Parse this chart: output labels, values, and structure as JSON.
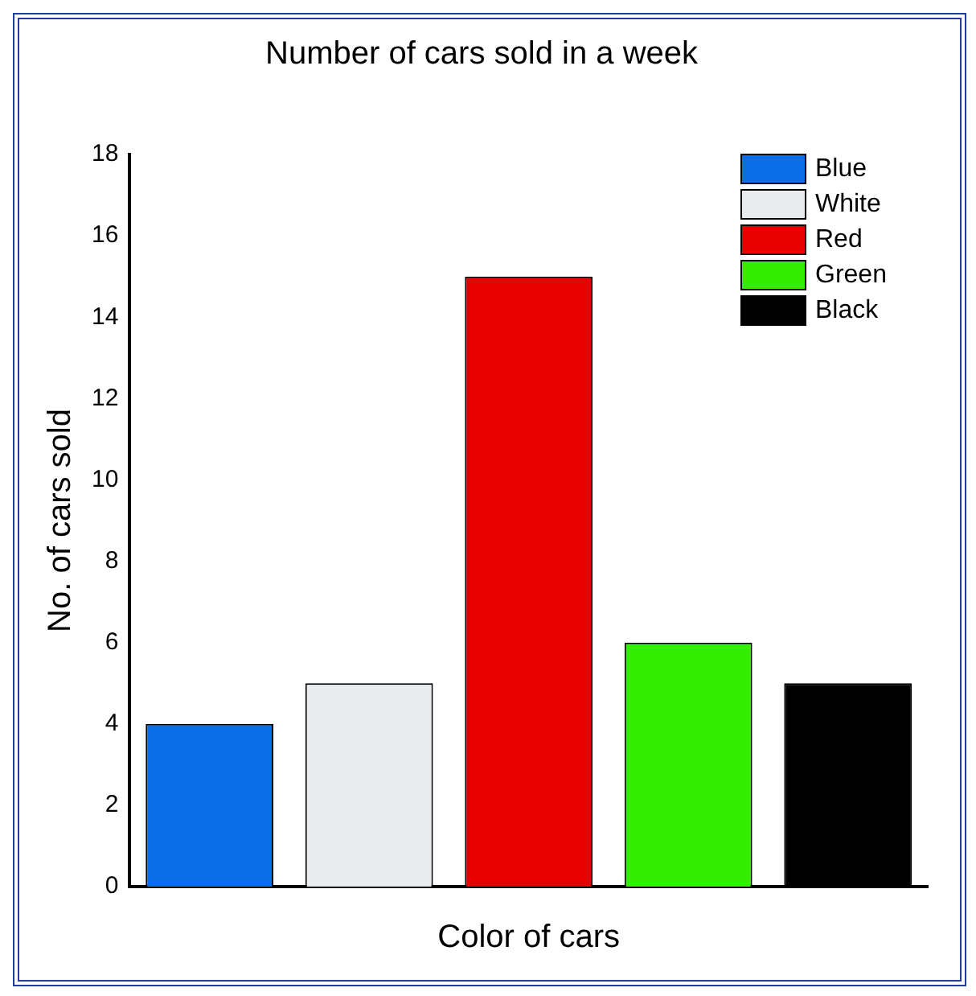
{
  "chart_data": {
    "type": "bar",
    "title": "Number of cars sold in a week",
    "xlabel": "Color of cars",
    "ylabel": "No. of cars sold",
    "categories": [
      null,
      null,
      null,
      null,
      null
    ],
    "series": [
      {
        "name": "Blue",
        "color": "#0a6ee6",
        "values": [
          4,
          null,
          null,
          null,
          null
        ]
      },
      {
        "name": "White",
        "color": "#e8ecef",
        "values": [
          null,
          5,
          null,
          null,
          null
        ]
      },
      {
        "name": "Red",
        "color": "#e60000",
        "values": [
          null,
          null,
          15,
          null,
          null
        ]
      },
      {
        "name": "Green",
        "color": "#33ee00",
        "values": [
          null,
          null,
          null,
          6,
          null
        ]
      },
      {
        "name": "Black",
        "color": "#000000",
        "values": [
          null,
          null,
          null,
          null,
          5
        ]
      }
    ],
    "ylim": [
      0,
      18
    ],
    "yticks": [
      0,
      2,
      4,
      6,
      8,
      10,
      12,
      14,
      16,
      18
    ],
    "grid": false,
    "legend": "top right",
    "tick_labels": "y"
  }
}
